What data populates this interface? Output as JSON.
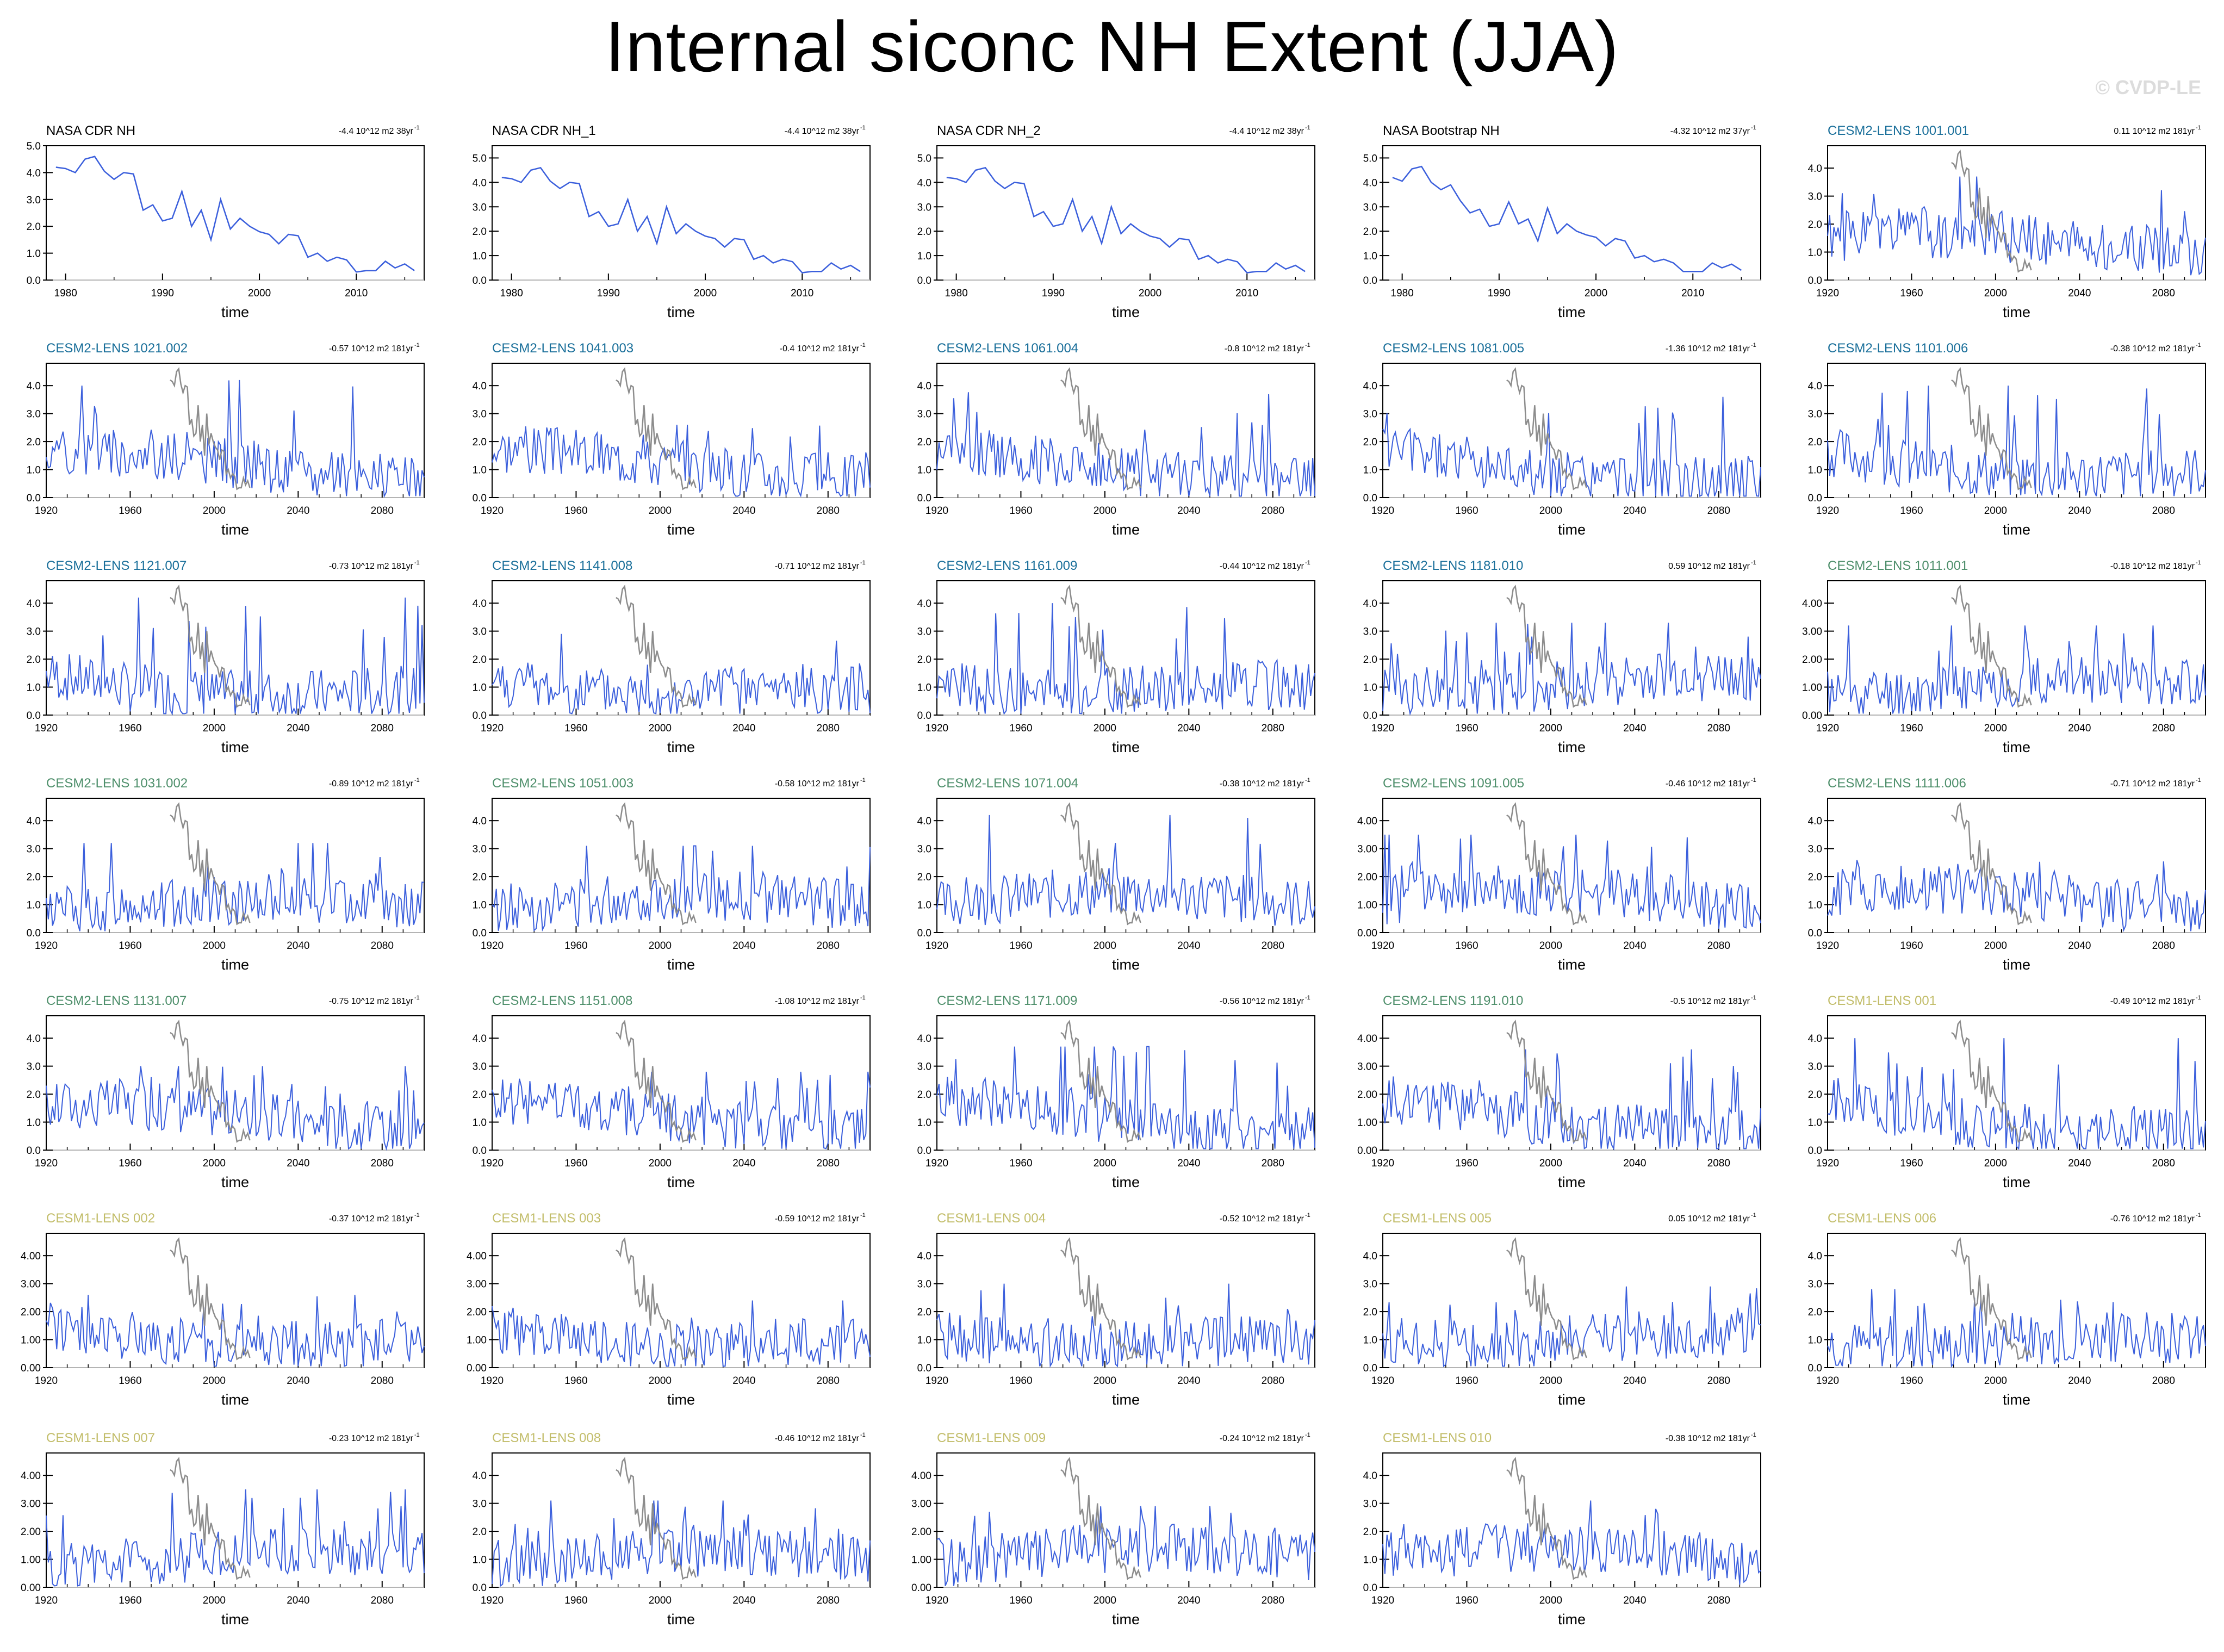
{
  "title": "Internal siconc NH Extent (JJA)",
  "copyright": "© CVDP-LE",
  "colors": {
    "model_line": "#3b5fdc",
    "obs_line": "#8c8c8c",
    "zero_line": "#b4b4b4",
    "cesm2_a": "#1a6f9a",
    "cesm2_b": "#4e8f6b",
    "cesm1": "#c2bd6a",
    "obs_title": "#000000"
  },
  "axis_label": "time",
  "chart_data": [
    {
      "type": "line",
      "title": "NASA CDR NH",
      "trend": "-4.4 10^12 m2 38yr",
      "trend_sup": "-1",
      "x_range": [
        1978,
        2017
      ],
      "x_ticks": [
        "1980",
        "1990",
        "2000",
        "2010"
      ],
      "ylim": [
        0,
        5.0
      ],
      "y_ticks": [
        "0.0",
        "1.0",
        "2.0",
        "3.0",
        "4.0",
        "5.0"
      ],
      "series": [
        {
          "values": [
            4.2,
            4.15,
            4.0,
            4.5,
            4.6,
            4.05,
            3.75,
            4.0,
            3.95,
            2.6,
            2.8,
            2.2,
            2.3,
            3.3,
            2.0,
            2.6,
            1.5,
            3.0,
            1.9,
            2.3,
            2.0,
            1.8,
            1.7,
            1.35,
            1.7,
            1.65,
            0.85,
            1.0,
            0.7,
            0.85,
            0.75,
            0.3,
            0.35,
            0.35,
            0.7,
            0.45,
            0.6,
            0.35
          ]
        }
      ]
    },
    {
      "type": "line",
      "title": "NASA CDR NH_1",
      "trend": "-4.4 10^12 m2 38yr",
      "trend_sup": "-1",
      "x_range": [
        1978,
        2017
      ],
      "x_ticks": [
        "1980",
        "1990",
        "2000",
        "2010"
      ],
      "ylim": [
        0,
        5.5
      ],
      "y_ticks": [
        "0.0",
        "1.0",
        "2.0",
        "3.0",
        "4.0",
        "5.0"
      ],
      "series": [
        {
          "values": [
            4.2,
            4.15,
            4.0,
            4.5,
            4.6,
            4.05,
            3.75,
            4.0,
            3.95,
            2.6,
            2.8,
            2.2,
            2.3,
            3.3,
            2.0,
            2.6,
            1.5,
            3.0,
            1.9,
            2.3,
            2.0,
            1.8,
            1.7,
            1.35,
            1.7,
            1.65,
            0.85,
            1.0,
            0.7,
            0.85,
            0.75,
            0.3,
            0.35,
            0.35,
            0.7,
            0.45,
            0.6,
            0.35
          ]
        }
      ]
    },
    {
      "type": "line",
      "title": "NASA CDR NH_2",
      "trend": "-4.4 10^12 m2 38yr",
      "trend_sup": "-1",
      "x_range": [
        1978,
        2017
      ],
      "x_ticks": [
        "1980",
        "1990",
        "2000",
        "2010"
      ],
      "ylim": [
        0,
        5.5
      ],
      "y_ticks": [
        "0.0",
        "1.0",
        "2.0",
        "3.0",
        "4.0",
        "5.0"
      ],
      "series": [
        {
          "values": [
            4.2,
            4.15,
            4.0,
            4.5,
            4.6,
            4.05,
            3.75,
            4.0,
            3.95,
            2.6,
            2.8,
            2.2,
            2.3,
            3.3,
            2.0,
            2.6,
            1.5,
            3.0,
            1.9,
            2.3,
            2.0,
            1.8,
            1.7,
            1.35,
            1.7,
            1.65,
            0.85,
            1.0,
            0.7,
            0.85,
            0.75,
            0.3,
            0.35,
            0.35,
            0.7,
            0.45,
            0.6,
            0.35
          ]
        }
      ]
    },
    {
      "type": "line",
      "title": "NASA Bootstrap NH",
      "trend": "-4.32 10^12 m2 37yr",
      "trend_sup": "-1",
      "x_range": [
        1978,
        2017
      ],
      "x_ticks": [
        "1980",
        "1990",
        "2000",
        "2010"
      ],
      "ylim": [
        0,
        5.5
      ],
      "y_ticks": [
        "0.0",
        "1.0",
        "2.0",
        "3.0",
        "4.0",
        "5.0"
      ],
      "series": [
        {
          "values": [
            4.2,
            4.05,
            4.55,
            4.65,
            4.0,
            3.7,
            3.9,
            3.25,
            2.75,
            2.9,
            2.2,
            2.3,
            3.2,
            2.3,
            2.5,
            1.6,
            2.95,
            1.9,
            2.3,
            2.0,
            1.85,
            1.75,
            1.4,
            1.7,
            1.6,
            0.9,
            1.0,
            0.75,
            0.85,
            0.7,
            0.35,
            0.35,
            0.35,
            0.7,
            0.5,
            0.65,
            0.4
          ]
        }
      ]
    },
    {
      "type": "line",
      "title": "CESM2-LENS 1001.001",
      "trend": "0.11 10^12 m2 181yr",
      "trend_sup": "-1",
      "seed": 1,
      "ymax": 3.7,
      "tail": 1.05,
      "ylim": [
        0,
        4.8
      ],
      "y_ticks": [
        "0.0",
        "1.0",
        "2.0",
        "3.0",
        "4.0"
      ]
    },
    {
      "type": "line",
      "title": "CESM2-LENS 1021.002",
      "trend": "-0.57 10^12 m2 181yr",
      "trend_sup": "-1",
      "seed": 2,
      "ymax": 4.2,
      "tail": 0.55,
      "ylim": [
        0,
        4.8
      ],
      "y_ticks": [
        "0.0",
        "1.0",
        "2.0",
        "3.0",
        "4.0"
      ]
    },
    {
      "type": "line",
      "title": "CESM2-LENS 1041.003",
      "trend": "-0.4 10^12 m2 181yr",
      "trend_sup": "-1",
      "seed": 3,
      "ymax": 2.6,
      "tail": 0.7,
      "ylim": [
        0,
        4.8
      ],
      "y_ticks": [
        "0.0",
        "1.0",
        "2.0",
        "3.0",
        "4.0"
      ]
    },
    {
      "type": "line",
      "title": "CESM2-LENS 1061.004",
      "trend": "-0.8 10^12 m2 181yr",
      "trend_sup": "-1",
      "seed": 4,
      "ymax": 3.8,
      "tail": 0.45,
      "ylim": [
        0,
        4.8
      ],
      "y_ticks": [
        "0.0",
        "1.0",
        "2.0",
        "3.0",
        "4.0"
      ]
    },
    {
      "type": "line",
      "title": "CESM2-LENS 1081.005",
      "trend": "-1.36 10^12 m2 181yr",
      "trend_sup": "-1",
      "seed": 5,
      "ymax": 3.6,
      "tail": 0.3,
      "ylim": [
        0,
        4.8
      ],
      "y_ticks": [
        "0.0",
        "1.0",
        "2.0",
        "3.0",
        "4.0"
      ]
    },
    {
      "type": "line",
      "title": "CESM2-LENS 1101.006",
      "trend": "-0.38 10^12 m2 181yr",
      "trend_sup": "-1",
      "seed": 6,
      "ymax": 4.0,
      "tail": 0.75,
      "ylim": [
        0,
        4.8
      ],
      "y_ticks": [
        "0.0",
        "1.0",
        "2.0",
        "3.0",
        "4.0"
      ]
    },
    {
      "type": "line",
      "title": "CESM2-LENS 1121.007",
      "trend": "-0.73 10^12 m2 181yr",
      "trend_sup": "-1",
      "seed": 7,
      "ymax": 4.2,
      "tail": 0.5,
      "ylim": [
        0,
        4.8
      ],
      "y_ticks": [
        "0.0",
        "1.0",
        "2.0",
        "3.0",
        "4.0"
      ]
    },
    {
      "type": "line",
      "title": "CESM2-LENS 1141.008",
      "trend": "-0.71 10^12 m2 181yr",
      "trend_sup": "-1",
      "seed": 8,
      "ymax": 2.9,
      "tail": 0.55,
      "ylim": [
        0,
        4.8
      ],
      "y_ticks": [
        "0.0",
        "1.0",
        "2.0",
        "3.0",
        "4.0"
      ]
    },
    {
      "type": "line",
      "title": "CESM2-LENS 1161.009",
      "trend": "-0.44 10^12 m2 181yr",
      "trend_sup": "-1",
      "seed": 9,
      "ymax": 4.0,
      "tail": 0.6,
      "ylim": [
        0,
        4.8
      ],
      "y_ticks": [
        "0.0",
        "1.0",
        "2.0",
        "3.0",
        "4.0"
      ]
    },
    {
      "type": "line",
      "title": "CESM2-LENS 1181.010",
      "trend": "0.59 10^12 m2 181yr",
      "trend_sup": "-1",
      "seed": 10,
      "ymax": 3.3,
      "tail": 1.0,
      "ylim": [
        0,
        4.8
      ],
      "y_ticks": [
        "0.0",
        "1.0",
        "2.0",
        "3.0",
        "4.0"
      ]
    },
    {
      "type": "line",
      "title": "CESM2-LENS 1011.001",
      "trend": "-0.18 10^12 m2 181yr",
      "trend_sup": "-1",
      "seed": 11,
      "ymax": 3.2,
      "tail": 0.8,
      "ylim": [
        0,
        4.8
      ],
      "y_ticks": [
        "0.00",
        "1.00",
        "2.00",
        "3.00",
        "4.00"
      ]
    },
    {
      "type": "line",
      "title": "CESM2-LENS 1031.002",
      "trend": "-0.89 10^12 m2 181yr",
      "trend_sup": "-1",
      "seed": 12,
      "ymax": 3.2,
      "tail": 0.45,
      "ylim": [
        0,
        4.8
      ],
      "y_ticks": [
        "0.0",
        "1.0",
        "2.0",
        "3.0",
        "4.0"
      ]
    },
    {
      "type": "line",
      "title": "CESM2-LENS 1051.003",
      "trend": "-0.58 10^12 m2 181yr",
      "trend_sup": "-1",
      "seed": 13,
      "ymax": 3.1,
      "tail": 0.55,
      "ylim": [
        0,
        4.8
      ],
      "y_ticks": [
        "0.0",
        "1.0",
        "2.0",
        "3.0",
        "4.0"
      ]
    },
    {
      "type": "line",
      "title": "CESM2-LENS 1071.004",
      "trend": "-0.38 10^12 m2 181yr",
      "trend_sup": "-1",
      "seed": 14,
      "ymax": 4.2,
      "tail": 0.8,
      "ylim": [
        0,
        4.8
      ],
      "y_ticks": [
        "0.0",
        "1.0",
        "2.0",
        "3.0",
        "4.0"
      ]
    },
    {
      "type": "line",
      "title": "CESM2-LENS 1091.005",
      "trend": "-0.46 10^12 m2 181yr",
      "trend_sup": "-1",
      "seed": 15,
      "ymax": 3.5,
      "tail": 0.7,
      "ylim": [
        0,
        4.8
      ],
      "y_ticks": [
        "0.00",
        "1.00",
        "2.00",
        "3.00",
        "4.00"
      ]
    },
    {
      "type": "line",
      "title": "CESM2-LENS 1111.006",
      "trend": "-0.71 10^12 m2 181yr",
      "trend_sup": "-1",
      "seed": 16,
      "ymax": 3.1,
      "tail": 0.55,
      "ylim": [
        0,
        4.8
      ],
      "y_ticks": [
        "0.0",
        "1.0",
        "2.0",
        "3.0",
        "4.0"
      ]
    },
    {
      "type": "line",
      "title": "CESM2-LENS 1131.007",
      "trend": "-0.75 10^12 m2 181yr",
      "trend_sup": "-1",
      "seed": 17,
      "ymax": 3.0,
      "tail": 0.5,
      "ylim": [
        0,
        4.8
      ],
      "y_ticks": [
        "0.0",
        "1.0",
        "2.0",
        "3.0",
        "4.0"
      ]
    },
    {
      "type": "line",
      "title": "CESM2-LENS 1151.008",
      "trend": "-1.08 10^12 m2 181yr",
      "trend_sup": "-1",
      "seed": 18,
      "ymax": 2.8,
      "tail": 0.45,
      "ylim": [
        0,
        4.8
      ],
      "y_ticks": [
        "0.0",
        "1.0",
        "2.0",
        "3.0",
        "4.0"
      ]
    },
    {
      "type": "line",
      "title": "CESM2-LENS 1171.009",
      "trend": "-0.56 10^12 m2 181yr",
      "trend_sup": "-1",
      "seed": 19,
      "ymax": 3.7,
      "tail": 0.55,
      "ylim": [
        0,
        4.8
      ],
      "y_ticks": [
        "0.0",
        "1.0",
        "2.0",
        "3.0",
        "4.0"
      ]
    },
    {
      "type": "line",
      "title": "CESM2-LENS 1191.010",
      "trend": "-0.5 10^12 m2 181yr",
      "trend_sup": "-1",
      "seed": 20,
      "ymax": 3.6,
      "tail": 0.6,
      "ylim": [
        0,
        4.8
      ],
      "y_ticks": [
        "0.00",
        "1.00",
        "2.00",
        "3.00",
        "4.00"
      ]
    },
    {
      "type": "line",
      "title": "CESM1-LENS 001",
      "trend": "-0.49 10^12 m2 181yr",
      "trend_sup": "-1",
      "seed": 21,
      "ymax": 4.0,
      "tail": 0.5,
      "ylim": [
        0,
        4.8
      ],
      "y_ticks": [
        "0.0",
        "1.0",
        "2.0",
        "3.0",
        "4.0"
      ]
    },
    {
      "type": "line",
      "title": "CESM1-LENS 002",
      "trend": "-0.37 10^12 m2 181yr",
      "trend_sup": "-1",
      "seed": 22,
      "ymax": 2.6,
      "tail": 0.7,
      "ylim": [
        0,
        4.8
      ],
      "y_ticks": [
        "0.00",
        "1.00",
        "2.00",
        "3.00",
        "4.00"
      ]
    },
    {
      "type": "line",
      "title": "CESM1-LENS 003",
      "trend": "-0.59 10^12 m2 181yr",
      "trend_sup": "-1",
      "seed": 23,
      "ymax": 2.4,
      "tail": 0.7,
      "ylim": [
        0,
        4.8
      ],
      "y_ticks": [
        "0.00",
        "1.00",
        "2.00",
        "3.00",
        "4.00"
      ]
    },
    {
      "type": "line",
      "title": "CESM1-LENS 004",
      "trend": "-0.52 10^12 m2 181yr",
      "trend_sup": "-1",
      "seed": 24,
      "ymax": 3.0,
      "tail": 0.55,
      "ylim": [
        0,
        4.8
      ],
      "y_ticks": [
        "0.0",
        "1.0",
        "2.0",
        "3.0",
        "4.0"
      ]
    },
    {
      "type": "line",
      "title": "CESM1-LENS 005",
      "trend": "0.05 10^12 m2 181yr",
      "trend_sup": "-1",
      "seed": 25,
      "ymax": 2.9,
      "tail": 0.95,
      "ylim": [
        0,
        4.8
      ],
      "y_ticks": [
        "0.0",
        "1.0",
        "2.0",
        "3.0",
        "4.0"
      ]
    },
    {
      "type": "line",
      "title": "CESM1-LENS 006",
      "trend": "-0.76 10^12 m2 181yr",
      "trend_sup": "-1",
      "seed": 26,
      "ymax": 2.8,
      "tail": 0.45,
      "ylim": [
        0,
        4.8
      ],
      "y_ticks": [
        "0.0",
        "1.0",
        "2.0",
        "3.0",
        "4.0"
      ]
    },
    {
      "type": "line",
      "title": "CESM1-LENS 007",
      "trend": "-0.23 10^12 m2 181yr",
      "trend_sup": "-1",
      "seed": 27,
      "ymax": 3.5,
      "tail": 0.8,
      "ylim": [
        0,
        4.8
      ],
      "y_ticks": [
        "0.00",
        "1.00",
        "2.00",
        "3.00",
        "4.00"
      ]
    },
    {
      "type": "line",
      "title": "CESM1-LENS 008",
      "trend": "-0.46 10^12 m2 181yr",
      "trend_sup": "-1",
      "seed": 28,
      "ymax": 3.1,
      "tail": 0.6,
      "ylim": [
        0,
        4.8
      ],
      "y_ticks": [
        "0.0",
        "1.0",
        "2.0",
        "3.0",
        "4.0"
      ]
    },
    {
      "type": "line",
      "title": "CESM1-LENS 009",
      "trend": "-0.24 10^12 m2 181yr",
      "trend_sup": "-1",
      "seed": 29,
      "ymax": 2.9,
      "tail": 0.8,
      "ylim": [
        0,
        4.8
      ],
      "y_ticks": [
        "0.00",
        "1.00",
        "2.00",
        "3.00",
        "4.00"
      ]
    },
    {
      "type": "line",
      "title": "CESM1-LENS 010",
      "trend": "-0.38 10^12 m2 181yr",
      "trend_sup": "-1",
      "seed": 30,
      "ymax": 3.1,
      "tail": 0.6,
      "ylim": [
        0,
        4.8
      ],
      "y_ticks": [
        "0.0",
        "1.0",
        "2.0",
        "3.0",
        "4.0"
      ]
    }
  ],
  "model_axis": {
    "x_range": [
      1920,
      2100
    ],
    "x_ticks": [
      "1920",
      "1960",
      "2000",
      "2040",
      "2080"
    ],
    "obs_overlay_x_range": [
      1979,
      2017
    ]
  }
}
